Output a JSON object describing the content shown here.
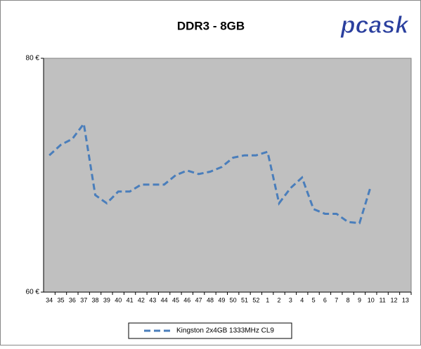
{
  "chart_data": {
    "type": "line",
    "title": "DDR3 - 8GB",
    "logo": "pcask",
    "categories": [
      "34",
      "35",
      "36",
      "37",
      "38",
      "39",
      "40",
      "41",
      "42",
      "43",
      "44",
      "45",
      "46",
      "47",
      "48",
      "49",
      "50",
      "51",
      "52",
      "1",
      "2",
      "3",
      "4",
      "5",
      "6",
      "7",
      "8",
      "9",
      "10",
      "11",
      "12",
      "13"
    ],
    "series": [
      {
        "name": "Kingston 2x4GB 1333MHz CL9",
        "color": "#4a7ebb",
        "values": [
          71.7,
          72.6,
          73.1,
          74.4,
          68.3,
          67.6,
          68.6,
          68.6,
          69.2,
          69.2,
          69.2,
          70.0,
          70.4,
          70.1,
          70.3,
          70.7,
          71.5,
          71.7,
          71.7,
          72.0,
          67.6,
          68.9,
          69.8,
          67.1,
          66.7,
          66.7,
          66.0,
          65.9,
          69.1,
          null,
          null,
          null
        ]
      }
    ],
    "ylim": [
      60,
      80
    ],
    "yticks": [
      {
        "value": 60,
        "label": "60 €"
      },
      {
        "value": 80,
        "label": "80 €"
      }
    ],
    "grid": false,
    "legend": "bottom"
  }
}
